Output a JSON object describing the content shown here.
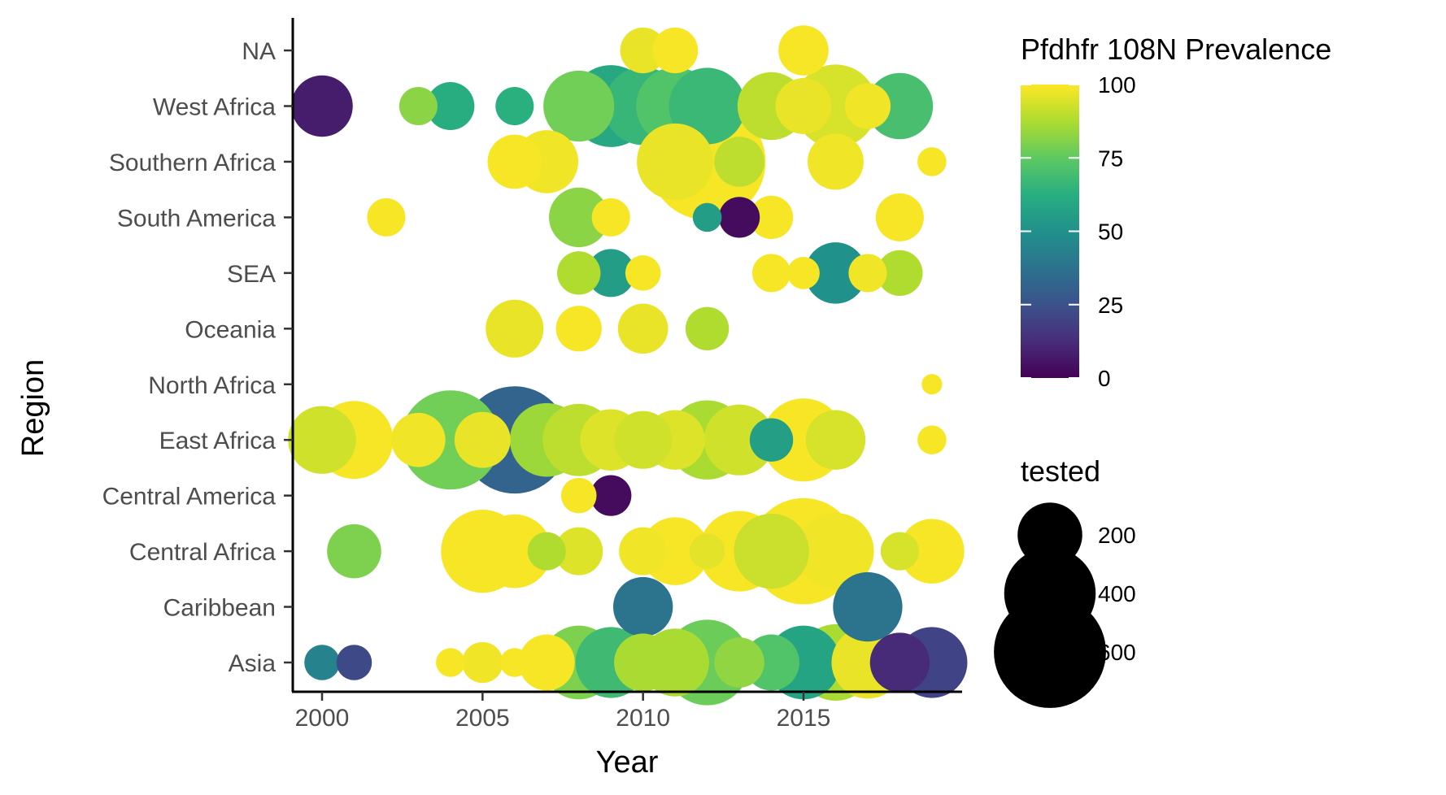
{
  "chart_data": {
    "type": "scatter",
    "title": "",
    "xlabel": "Year",
    "ylabel": "Region",
    "xlim": [
      1999.1,
      2019.9
    ],
    "x_ticks": [
      2000,
      2005,
      2010,
      2015
    ],
    "categories": [
      "Asia",
      "Caribbean",
      "Central Africa",
      "Central America",
      "East Africa",
      "North Africa",
      "Oceania",
      "SEA",
      "South America",
      "Southern Africa",
      "West Africa",
      "NA"
    ],
    "grid": false,
    "color_legend": {
      "title": "Pfdhfr 108N Prevalence",
      "ticks": [
        0,
        25,
        50,
        75,
        100
      ],
      "range": [
        0,
        100
      ],
      "palette": [
        "#440154",
        "#472d7b",
        "#3b528b",
        "#2c728e",
        "#21918c",
        "#28ae80",
        "#5ec962",
        "#addc30",
        "#fde725"
      ]
    },
    "size_legend": {
      "title": "tested",
      "breaks": [
        200,
        400,
        600
      ]
    },
    "points": [
      {
        "region": "NA",
        "year": 2010,
        "prevalence": 97,
        "tested": 100
      },
      {
        "region": "NA",
        "year": 2011,
        "prevalence": 99,
        "tested": 100
      },
      {
        "region": "NA",
        "year": 2015,
        "prevalence": 99,
        "tested": 120
      },
      {
        "region": "West Africa",
        "year": 2000,
        "prevalence": 8,
        "tested": 180
      },
      {
        "region": "West Africa",
        "year": 2003,
        "prevalence": 82,
        "tested": 70
      },
      {
        "region": "West Africa",
        "year": 2004,
        "prevalence": 62,
        "tested": 110
      },
      {
        "region": "West Africa",
        "year": 2006,
        "prevalence": 63,
        "tested": 70
      },
      {
        "region": "West Africa",
        "year": 2008,
        "prevalence": 78,
        "tested": 240
      },
      {
        "region": "West Africa",
        "year": 2009,
        "prevalence": 60,
        "tested": 320
      },
      {
        "region": "West Africa",
        "year": 2010,
        "prevalence": 66,
        "tested": 290
      },
      {
        "region": "West Africa",
        "year": 2011,
        "prevalence": 72,
        "tested": 290
      },
      {
        "region": "West Africa",
        "year": 2012,
        "prevalence": 67,
        "tested": 280
      },
      {
        "region": "West Africa",
        "year": 2014,
        "prevalence": 90,
        "tested": 220
      },
      {
        "region": "West Africa",
        "year": 2015,
        "prevalence": 97,
        "tested": 150
      },
      {
        "region": "West Africa",
        "year": 2016,
        "prevalence": 94,
        "tested": 330
      },
      {
        "region": "West Africa",
        "year": 2017,
        "prevalence": 98,
        "tested": 100
      },
      {
        "region": "West Africa",
        "year": 2018,
        "prevalence": 70,
        "tested": 210
      },
      {
        "region": "Southern Africa",
        "year": 2006,
        "prevalence": 99,
        "tested": 140
      },
      {
        "region": "Southern Africa",
        "year": 2007,
        "prevalence": 98,
        "tested": 190
      },
      {
        "region": "Southern Africa",
        "year": 2011,
        "prevalence": 97,
        "tested": 280
      },
      {
        "region": "Southern Africa",
        "year": 2012,
        "prevalence": 99,
        "tested": 650
      },
      {
        "region": "Southern Africa",
        "year": 2013,
        "prevalence": 90,
        "tested": 120
      },
      {
        "region": "Southern Africa",
        "year": 2016,
        "prevalence": 98,
        "tested": 150
      },
      {
        "region": "Southern Africa",
        "year": 2019,
        "prevalence": 99,
        "tested": 40
      },
      {
        "region": "South America",
        "year": 2002,
        "prevalence": 99,
        "tested": 70
      },
      {
        "region": "South America",
        "year": 2008,
        "prevalence": 82,
        "tested": 170
      },
      {
        "region": "South America",
        "year": 2009,
        "prevalence": 99,
        "tested": 70
      },
      {
        "region": "South America",
        "year": 2012,
        "prevalence": 55,
        "tested": 40
      },
      {
        "region": "South America",
        "year": 2013,
        "prevalence": 3,
        "tested": 80
      },
      {
        "region": "South America",
        "year": 2014,
        "prevalence": 99,
        "tested": 90
      },
      {
        "region": "South America",
        "year": 2018,
        "prevalence": 99,
        "tested": 110
      },
      {
        "region": "SEA",
        "year": 2008,
        "prevalence": 88,
        "tested": 90
      },
      {
        "region": "SEA",
        "year": 2009,
        "prevalence": 55,
        "tested": 110
      },
      {
        "region": "SEA",
        "year": 2010,
        "prevalence": 99,
        "tested": 60
      },
      {
        "region": "SEA",
        "year": 2014,
        "prevalence": 99,
        "tested": 70
      },
      {
        "region": "SEA",
        "year": 2015,
        "prevalence": 99,
        "tested": 50
      },
      {
        "region": "SEA",
        "year": 2016,
        "prevalence": 50,
        "tested": 180
      },
      {
        "region": "SEA",
        "year": 2017,
        "prevalence": 98,
        "tested": 70
      },
      {
        "region": "SEA",
        "year": 2018,
        "prevalence": 88,
        "tested": 100
      },
      {
        "region": "Oceania",
        "year": 2006,
        "prevalence": 97,
        "tested": 160
      },
      {
        "region": "Oceania",
        "year": 2008,
        "prevalence": 99,
        "tested": 100
      },
      {
        "region": "Oceania",
        "year": 2010,
        "prevalence": 97,
        "tested": 120
      },
      {
        "region": "Oceania",
        "year": 2012,
        "prevalence": 88,
        "tested": 90
      },
      {
        "region": "North Africa",
        "year": 2019,
        "prevalence": 99,
        "tested": 20
      },
      {
        "region": "East Africa",
        "year": 2000,
        "prevalence": 93,
        "tested": 220
      },
      {
        "region": "East Africa",
        "year": 2001,
        "prevalence": 99,
        "tested": 290
      },
      {
        "region": "East Africa",
        "year": 2003,
        "prevalence": 98,
        "tested": 140
      },
      {
        "region": "East Africa",
        "year": 2004,
        "prevalence": 78,
        "tested": 470
      },
      {
        "region": "East Africa",
        "year": 2005,
        "prevalence": 97,
        "tested": 150
      },
      {
        "region": "East Africa",
        "year": 2006,
        "prevalence": 32,
        "tested": 550
      },
      {
        "region": "East Africa",
        "year": 2007,
        "prevalence": 85,
        "tested": 260
      },
      {
        "region": "East Africa",
        "year": 2008,
        "prevalence": 90,
        "tested": 250
      },
      {
        "region": "East Africa",
        "year": 2009,
        "prevalence": 95,
        "tested": 180
      },
      {
        "region": "East Africa",
        "year": 2010,
        "prevalence": 93,
        "tested": 160
      },
      {
        "region": "East Africa",
        "year": 2011,
        "prevalence": 95,
        "tested": 170
      },
      {
        "region": "East Africa",
        "year": 2012,
        "prevalence": 87,
        "tested": 300
      },
      {
        "region": "East Africa",
        "year": 2013,
        "prevalence": 93,
        "tested": 240
      },
      {
        "region": "East Africa",
        "year": 2014,
        "prevalence": 56,
        "tested": 90
      },
      {
        "region": "East Africa",
        "year": 2015,
        "prevalence": 99,
        "tested": 330
      },
      {
        "region": "East Africa",
        "year": 2016,
        "prevalence": 94,
        "tested": 170
      },
      {
        "region": "East Africa",
        "year": 2019,
        "prevalence": 99,
        "tested": 40
      },
      {
        "region": "Central America",
        "year": 2008,
        "prevalence": 99,
        "tested": 60
      },
      {
        "region": "Central America",
        "year": 2009,
        "prevalence": 3,
        "tested": 80
      },
      {
        "region": "Central Africa",
        "year": 2001,
        "prevalence": 80,
        "tested": 140
      },
      {
        "region": "Central Africa",
        "year": 2005,
        "prevalence": 99,
        "tested": 330
      },
      {
        "region": "Central Africa",
        "year": 2006,
        "prevalence": 99,
        "tested": 260
      },
      {
        "region": "Central Africa",
        "year": 2007,
        "prevalence": 88,
        "tested": 70
      },
      {
        "region": "Central Africa",
        "year": 2008,
        "prevalence": 95,
        "tested": 110
      },
      {
        "region": "Central Africa",
        "year": 2010,
        "prevalence": 98,
        "tested": 110
      },
      {
        "region": "Central Africa",
        "year": 2011,
        "prevalence": 99,
        "tested": 220
      },
      {
        "region": "Central Africa",
        "year": 2012,
        "prevalence": 96,
        "tested": 60
      },
      {
        "region": "Central Africa",
        "year": 2013,
        "prevalence": 99,
        "tested": 310
      },
      {
        "region": "Central Africa",
        "year": 2014,
        "prevalence": 92,
        "tested": 270
      },
      {
        "region": "Central Africa",
        "year": 2015,
        "prevalence": 99,
        "tested": 540
      },
      {
        "region": "Central Africa",
        "year": 2016,
        "prevalence": 98,
        "tested": 280
      },
      {
        "region": "Central Africa",
        "year": 2018,
        "prevalence": 94,
        "tested": 70
      },
      {
        "region": "Central Africa",
        "year": 2019,
        "prevalence": 99,
        "tested": 200
      },
      {
        "region": "Caribbean",
        "year": 2010,
        "prevalence": 38,
        "tested": 170
      },
      {
        "region": "Caribbean",
        "year": 2017,
        "prevalence": 38,
        "tested": 230
      },
      {
        "region": "Asia",
        "year": 2000,
        "prevalence": 44,
        "tested": 60
      },
      {
        "region": "Asia",
        "year": 2001,
        "prevalence": 22,
        "tested": 60
      },
      {
        "region": "Asia",
        "year": 2004,
        "prevalence": 99,
        "tested": 40
      },
      {
        "region": "Asia",
        "year": 2005,
        "prevalence": 98,
        "tested": 80
      },
      {
        "region": "Asia",
        "year": 2006,
        "prevalence": 99,
        "tested": 40
      },
      {
        "region": "Asia",
        "year": 2007,
        "prevalence": 99,
        "tested": 150
      },
      {
        "region": "Asia",
        "year": 2008,
        "prevalence": 80,
        "tested": 260
      },
      {
        "region": "Asia",
        "year": 2009,
        "prevalence": 68,
        "tested": 240
      },
      {
        "region": "Asia",
        "year": 2010,
        "prevalence": 87,
        "tested": 160
      },
      {
        "region": "Asia",
        "year": 2011,
        "prevalence": 87,
        "tested": 220
      },
      {
        "region": "Asia",
        "year": 2012,
        "prevalence": 77,
        "tested": 350
      },
      {
        "region": "Asia",
        "year": 2013,
        "prevalence": 83,
        "tested": 120
      },
      {
        "region": "Asia",
        "year": 2014,
        "prevalence": 72,
        "tested": 150
      },
      {
        "region": "Asia",
        "year": 2015,
        "prevalence": 58,
        "tested": 260
      },
      {
        "region": "Asia",
        "year": 2016,
        "prevalence": 87,
        "tested": 280
      },
      {
        "region": "Asia",
        "year": 2017,
        "prevalence": 97,
        "tested": 250
      },
      {
        "region": "Asia",
        "year": 2018,
        "prevalence": 12,
        "tested": 170
      },
      {
        "region": "Asia",
        "year": 2019,
        "prevalence": 20,
        "tested": 240
      }
    ]
  }
}
